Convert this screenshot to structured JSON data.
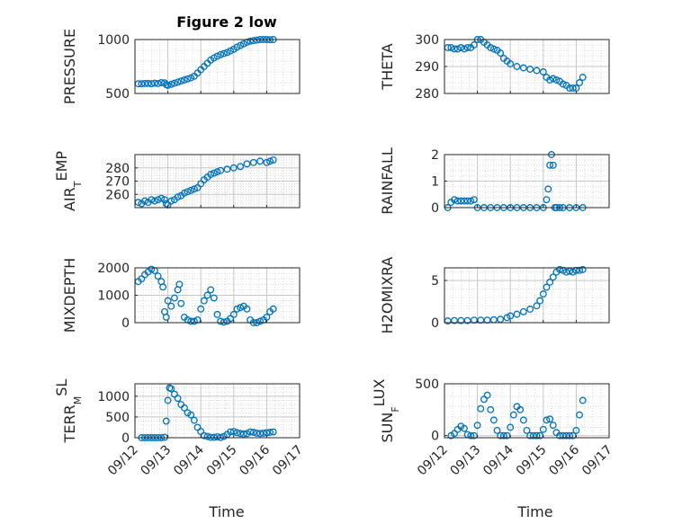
{
  "title": "Figure 2 low",
  "marker_color": "#0072BD",
  "x_tick_labels": [
    "09/12",
    "09/13",
    "09/14",
    "09/15",
    "09/16",
    "09/17"
  ],
  "xlabel": "Time",
  "chart_data": [
    {
      "type": "scatter",
      "ylabel": "PRESSURE",
      "ylim": [
        500,
        1000
      ],
      "yticks": [
        500,
        1000
      ],
      "xlim": [
        0,
        5
      ],
      "grid": true,
      "x": [
        0.1,
        0.2,
        0.3,
        0.4,
        0.5,
        0.6,
        0.7,
        0.8,
        0.9,
        0.95,
        1.0,
        1.1,
        1.2,
        1.3,
        1.4,
        1.5,
        1.6,
        1.7,
        1.8,
        1.9,
        2.0,
        2.1,
        2.2,
        2.3,
        2.4,
        2.5,
        2.6,
        2.7,
        2.8,
        2.9,
        3.0,
        3.1,
        3.2,
        3.3,
        3.4,
        3.5,
        3.6,
        3.7,
        3.8,
        3.9,
        4.0,
        4.1,
        4.2
      ],
      "y": [
        590,
        590,
        592,
        593,
        590,
        595,
        592,
        600,
        598,
        582,
        575,
        585,
        595,
        605,
        615,
        625,
        635,
        645,
        660,
        690,
        720,
        750,
        780,
        810,
        830,
        845,
        860,
        870,
        880,
        895,
        910,
        930,
        945,
        960,
        975,
        985,
        990,
        995,
        1000,
        1000,
        1000,
        998,
        1000
      ]
    },
    {
      "type": "scatter",
      "ylabel": "THETA",
      "ylim": [
        280,
        300
      ],
      "yticks": [
        280,
        290,
        300
      ],
      "xlim": [
        0,
        5
      ],
      "grid": true,
      "x": [
        0.1,
        0.2,
        0.3,
        0.4,
        0.5,
        0.6,
        0.7,
        0.8,
        0.9,
        1.0,
        1.1,
        1.2,
        1.3,
        1.4,
        1.5,
        1.6,
        1.7,
        1.8,
        1.9,
        2.0,
        2.2,
        2.4,
        2.6,
        2.8,
        3.0,
        3.1,
        3.2,
        3.3,
        3.4,
        3.5,
        3.6,
        3.7,
        3.8,
        3.9,
        4.0,
        4.1,
        4.2
      ],
      "y": [
        297,
        297,
        296.5,
        296.5,
        297,
        296.5,
        297,
        297,
        298,
        300,
        300,
        299,
        298,
        297,
        296.5,
        296,
        295,
        293,
        292,
        291,
        290,
        289.5,
        289,
        288.5,
        288,
        286,
        285,
        285.5,
        285,
        284.5,
        283.5,
        283,
        282,
        282,
        282,
        284,
        286
      ]
    },
    {
      "type": "scatter",
      "ylabel": "AIR_TEMP",
      "ylim": [
        250,
        290
      ],
      "yticks": [
        260,
        270,
        280
      ],
      "xlim": [
        0,
        5
      ],
      "grid": true,
      "x": [
        0.1,
        0.2,
        0.3,
        0.4,
        0.5,
        0.6,
        0.7,
        0.8,
        0.9,
        0.95,
        1.0,
        1.1,
        1.2,
        1.3,
        1.4,
        1.5,
        1.6,
        1.7,
        1.8,
        1.9,
        2.0,
        2.1,
        2.2,
        2.3,
        2.4,
        2.5,
        2.6,
        2.8,
        3.0,
        3.2,
        3.4,
        3.6,
        3.8,
        4.0,
        4.1,
        4.2
      ],
      "y": [
        254,
        253,
        255,
        254,
        256,
        255,
        256,
        257,
        256,
        253,
        252,
        255,
        256,
        258,
        259,
        261,
        262,
        263,
        264,
        265,
        268,
        271,
        273,
        275,
        276,
        277,
        278,
        279,
        280,
        281,
        283,
        284,
        285,
        284,
        285,
        286
      ]
    },
    {
      "type": "scatter",
      "ylabel": "RAINFALL",
      "ylim": [
        0,
        2
      ],
      "yticks": [
        0,
        1,
        2
      ],
      "xlim": [
        0,
        5
      ],
      "grid": true,
      "x": [
        0.1,
        0.2,
        0.3,
        0.4,
        0.5,
        0.6,
        0.7,
        0.8,
        0.9,
        1.0,
        1.2,
        1.4,
        1.6,
        1.8,
        2.0,
        2.2,
        2.4,
        2.6,
        2.8,
        3.0,
        3.1,
        3.15,
        3.2,
        3.25,
        3.3,
        3.35,
        3.4,
        3.5,
        3.6,
        3.8,
        4.0,
        4.2
      ],
      "y": [
        0,
        0.2,
        0.3,
        0.25,
        0.25,
        0.25,
        0.25,
        0.25,
        0.3,
        0,
        0,
        0,
        0,
        0,
        0,
        0,
        0,
        0,
        0,
        0,
        0.3,
        0.7,
        1.6,
        2.0,
        1.6,
        0,
        0,
        0,
        0,
        0,
        0,
        0
      ]
    },
    {
      "type": "scatter",
      "ylabel": "MIXDEPTH",
      "ylim": [
        0,
        2000
      ],
      "yticks": [
        0,
        1000,
        2000
      ],
      "xlim": [
        0,
        5
      ],
      "grid": true,
      "x": [
        0.1,
        0.2,
        0.3,
        0.4,
        0.5,
        0.6,
        0.7,
        0.8,
        0.85,
        0.9,
        0.95,
        1.0,
        1.1,
        1.2,
        1.3,
        1.35,
        1.4,
        1.5,
        1.6,
        1.7,
        1.8,
        1.9,
        2.0,
        2.1,
        2.2,
        2.3,
        2.4,
        2.5,
        2.6,
        2.7,
        2.8,
        2.9,
        3.0,
        3.1,
        3.2,
        3.3,
        3.4,
        3.5,
        3.6,
        3.7,
        3.8,
        3.9,
        4.0,
        4.1,
        4.2
      ],
      "y": [
        1500,
        1600,
        1750,
        1850,
        1950,
        1900,
        1700,
        1500,
        1300,
        400,
        200,
        800,
        600,
        900,
        1200,
        1400,
        700,
        200,
        100,
        50,
        50,
        100,
        500,
        800,
        1000,
        1200,
        900,
        300,
        50,
        20,
        50,
        150,
        300,
        500,
        550,
        600,
        500,
        100,
        0,
        0,
        50,
        100,
        200,
        400,
        500
      ]
    },
    {
      "type": "scatter",
      "ylabel": "H2OMIXRA",
      "ylim": [
        0,
        6.5
      ],
      "yticks": [
        0,
        5
      ],
      "xlim": [
        0,
        5
      ],
      "grid": true,
      "x": [
        0.1,
        0.3,
        0.5,
        0.7,
        0.9,
        1.1,
        1.3,
        1.5,
        1.7,
        1.9,
        2.0,
        2.2,
        2.4,
        2.6,
        2.8,
        2.9,
        3.0,
        3.1,
        3.2,
        3.3,
        3.4,
        3.5,
        3.6,
        3.7,
        3.8,
        3.9,
        4.0,
        4.1,
        4.2
      ],
      "y": [
        0.2,
        0.25,
        0.25,
        0.25,
        0.3,
        0.3,
        0.3,
        0.35,
        0.4,
        0.6,
        0.8,
        1.0,
        1.3,
        1.6,
        2.0,
        2.6,
        3.4,
        4.2,
        4.8,
        5.4,
        6.0,
        6.3,
        6.2,
        6.0,
        6.1,
        6.0,
        6.2,
        6.2,
        6.3
      ]
    },
    {
      "type": "scatter",
      "ylabel": "TERR_MSL",
      "ylim": [
        0,
        1300
      ],
      "yticks": [
        0,
        500,
        1000
      ],
      "xlim": [
        0,
        5
      ],
      "grid": true,
      "x": [
        0.2,
        0.3,
        0.4,
        0.5,
        0.6,
        0.7,
        0.8,
        0.9,
        0.95,
        1.0,
        1.05,
        1.1,
        1.2,
        1.3,
        1.4,
        1.5,
        1.6,
        1.7,
        1.8,
        1.9,
        2.0,
        2.1,
        2.2,
        2.3,
        2.4,
        2.5,
        2.6,
        2.7,
        2.8,
        2.9,
        3.0,
        3.1,
        3.2,
        3.3,
        3.4,
        3.5,
        3.6,
        3.7,
        3.8,
        3.9,
        4.0,
        4.1,
        4.2
      ],
      "y": [
        0,
        0,
        0,
        0,
        0,
        0,
        0,
        10,
        400,
        900,
        1200,
        1180,
        1050,
        950,
        800,
        720,
        600,
        550,
        420,
        250,
        150,
        50,
        30,
        10,
        10,
        20,
        5,
        30,
        80,
        140,
        150,
        120,
        100,
        90,
        100,
        140,
        130,
        110,
        100,
        110,
        120,
        130,
        140
      ]
    },
    {
      "type": "scatter",
      "ylabel": "SUN_FLUX",
      "ylim": [
        -20,
        500
      ],
      "yticks": [
        0,
        500
      ],
      "xlim": [
        0,
        5
      ],
      "grid": true,
      "x": [
        0.2,
        0.3,
        0.4,
        0.5,
        0.6,
        0.7,
        0.8,
        0.9,
        1.0,
        1.1,
        1.2,
        1.3,
        1.4,
        1.5,
        1.6,
        1.7,
        1.8,
        1.9,
        2.0,
        2.1,
        2.2,
        2.3,
        2.4,
        2.5,
        2.6,
        2.7,
        2.8,
        2.9,
        3.0,
        3.1,
        3.2,
        3.3,
        3.4,
        3.5,
        3.6,
        3.7,
        3.8,
        3.9,
        4.0,
        4.1,
        4.2
      ],
      "y": [
        0,
        20,
        60,
        90,
        70,
        10,
        0,
        0,
        100,
        260,
        350,
        390,
        250,
        150,
        50,
        0,
        0,
        0,
        80,
        200,
        280,
        250,
        150,
        50,
        0,
        0,
        0,
        0,
        60,
        150,
        160,
        100,
        30,
        0,
        0,
        0,
        0,
        0,
        50,
        200,
        340
      ]
    }
  ]
}
